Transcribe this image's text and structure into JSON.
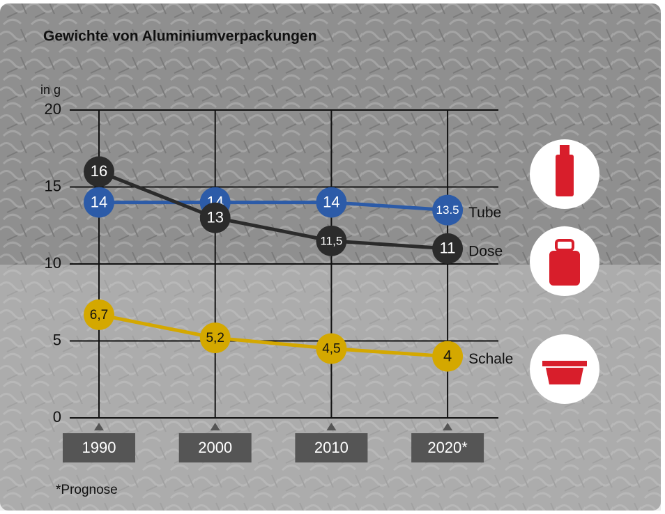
{
  "chart_data": {
    "type": "line",
    "title": "Gewichte von Aluminiumverpackungen",
    "y_label": "in g",
    "footnote": "*Prognose",
    "categories": [
      "1990",
      "2000",
      "2010",
      "2020*"
    ],
    "series": [
      {
        "name": "Tube",
        "color": "#2c5ba8",
        "text_color": "#ffffff",
        "values": [
          14,
          14,
          14,
          13.5
        ]
      },
      {
        "name": "Dose",
        "color": "#2b2b2b",
        "text_color": "#ffffff",
        "values": [
          16,
          13,
          11.5,
          11
        ],
        "value_labels": [
          "16",
          "13",
          "11,5",
          "11"
        ]
      },
      {
        "name": "Schale",
        "color": "#d4a800",
        "text_color": "#111111",
        "values": [
          6.7,
          5.2,
          4.5,
          4
        ],
        "value_labels": [
          "6,7",
          "5,2",
          "4,5",
          "4"
        ]
      }
    ],
    "ylim": [
      0,
      20
    ],
    "yticks": [
      0,
      5,
      10,
      15,
      20
    ],
    "grid": true
  }
}
